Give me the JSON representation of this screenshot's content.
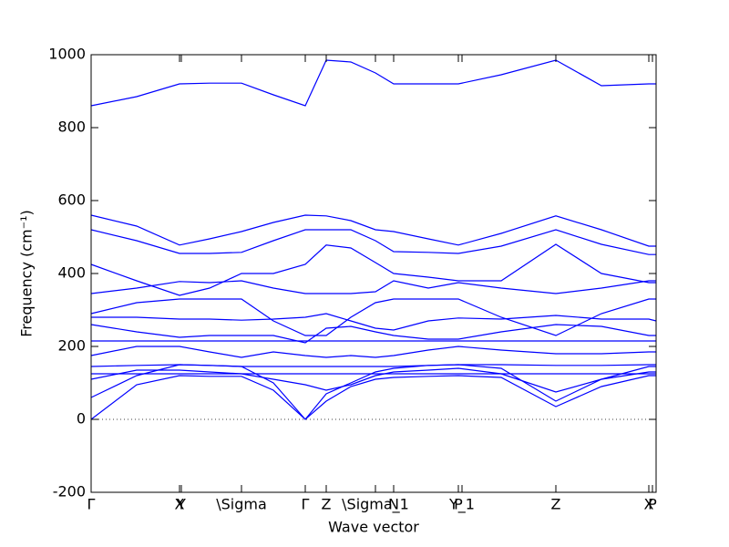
{
  "chart_data": {
    "type": "line",
    "xlabel": "Wave vector",
    "ylabel": "Frequency (cm⁻¹)",
    "xlim": [
      0,
      6.2
    ],
    "ylim": [
      -200,
      1000
    ],
    "yticks": [
      -200,
      0,
      200,
      400,
      600,
      800,
      1000
    ],
    "xticks": [
      {
        "value": 0,
        "label": "Γ"
      },
      {
        "value": 0.97,
        "label": "X"
      },
      {
        "value": 0.99,
        "label": "Y"
      },
      {
        "value": 1.65,
        "label": "\\Sigma"
      },
      {
        "value": 2.35,
        "label": "Γ"
      },
      {
        "value": 2.58,
        "label": "Z"
      },
      {
        "value": 3.12,
        "label": "\\Sigma_1"
      },
      {
        "value": 3.32,
        "label": "N"
      },
      {
        "value": 4.03,
        "label": "P"
      },
      {
        "value": 4.07,
        "label": "Y_1"
      },
      {
        "value": 5.1,
        "label": "Z"
      },
      {
        "value": 6.12,
        "label": "X"
      },
      {
        "value": 6.16,
        "label": "P"
      }
    ],
    "hline": 0,
    "x": [
      0,
      0.5,
      0.97,
      1.3,
      1.65,
      2.0,
      2.35,
      2.58,
      2.85,
      3.12,
      3.32,
      3.7,
      4.03,
      4.5,
      5.1,
      5.6,
      6.12,
      6.2
    ],
    "series": [
      {
        "color": "#0000ff",
        "values": [
          860,
          885,
          920,
          922,
          922,
          890,
          860,
          985,
          980,
          950,
          920,
          920,
          920,
          945,
          985,
          915,
          920,
          920
        ]
      },
      {
        "color": "#0000ff",
        "values": [
          560,
          530,
          478,
          495,
          515,
          540,
          560,
          558,
          545,
          520,
          515,
          495,
          478,
          510,
          558,
          520,
          475,
          475
        ]
      },
      {
        "color": "#0000ff",
        "values": [
          520,
          490,
          455,
          455,
          458,
          490,
          520,
          520,
          520,
          490,
          460,
          458,
          455,
          475,
          520,
          480,
          452,
          452
        ]
      },
      {
        "color": "#0000ff",
        "values": [
          425,
          380,
          340,
          360,
          400,
          400,
          425,
          478,
          470,
          430,
          400,
          390,
          380,
          380,
          480,
          400,
          375,
          375
        ]
      },
      {
        "color": "#0000ff",
        "values": [
          345,
          360,
          378,
          375,
          380,
          360,
          345,
          345,
          345,
          350,
          380,
          360,
          375,
          360,
          345,
          360,
          380,
          380
        ]
      },
      {
        "color": "#0000ff",
        "values": [
          290,
          320,
          330,
          330,
          330,
          270,
          230,
          230,
          280,
          320,
          330,
          330,
          330,
          280,
          230,
          290,
          330,
          330
        ]
      },
      {
        "color": "#0000ff",
        "values": [
          280,
          280,
          275,
          275,
          272,
          275,
          280,
          290,
          270,
          250,
          245,
          270,
          278,
          275,
          285,
          275,
          275,
          270
        ]
      },
      {
        "color": "#0000ff",
        "values": [
          260,
          240,
          225,
          230,
          230,
          230,
          210,
          250,
          255,
          240,
          230,
          220,
          220,
          240,
          260,
          255,
          230,
          230
        ]
      },
      {
        "color": "#0000ff",
        "values": [
          215,
          215,
          215,
          215,
          215,
          215,
          215,
          215,
          215,
          215,
          215,
          215,
          215,
          215,
          215,
          215,
          215,
          215
        ]
      },
      {
        "color": "#0000ff",
        "values": [
          175,
          200,
          200,
          185,
          170,
          185,
          175,
          170,
          175,
          170,
          175,
          190,
          200,
          190,
          180,
          180,
          185,
          185
        ]
      },
      {
        "color": "#0000ff",
        "values": [
          145,
          148,
          150,
          148,
          145,
          145,
          145,
          145,
          145,
          145,
          145,
          148,
          150,
          150,
          148,
          148,
          150,
          150
        ]
      },
      {
        "color": "#0000ff",
        "values": [
          125,
          125,
          125,
          125,
          125,
          125,
          125,
          125,
          125,
          125,
          125,
          125,
          125,
          125,
          125,
          125,
          125,
          125
        ]
      },
      {
        "color": "#0000ff",
        "values": [
          110,
          135,
          135,
          130,
          125,
          110,
          95,
          80,
          95,
          120,
          130,
          135,
          140,
          125,
          75,
          110,
          130,
          130
        ]
      },
      {
        "color": "#0000ff",
        "values": [
          60,
          120,
          150,
          148,
          145,
          100,
          0,
          70,
          100,
          130,
          140,
          148,
          150,
          140,
          50,
          110,
          145,
          145
        ]
      },
      {
        "color": "#0000ff",
        "values": [
          0,
          95,
          120,
          118,
          118,
          80,
          0,
          50,
          90,
          110,
          115,
          118,
          120,
          115,
          35,
          90,
          120,
          120
        ]
      }
    ]
  }
}
